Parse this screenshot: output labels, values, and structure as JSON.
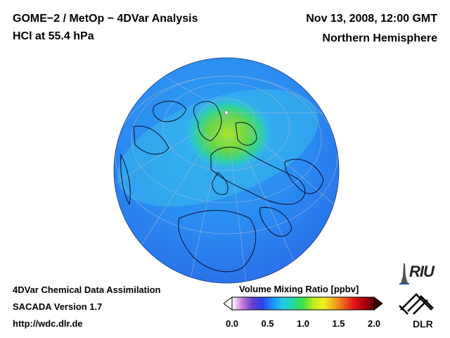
{
  "header": {
    "title": "GOME−2 / MetOp − 4DVar Analysis",
    "subtitle": "HCl at 55.4 hPa",
    "datetime": "Nov 13, 2008, 12:00 GMT",
    "region": "Northern Hemisphere"
  },
  "footer": {
    "line1": "4DVar Chemical Data Assimilation",
    "line2": "SACADA Version 1.7",
    "line3": "http://wdc.dlr.de"
  },
  "colorbar": {
    "title": "Volume Mixing Ratio [ppbv]",
    "ticks": [
      "0.0",
      "0.5",
      "1.0",
      "1.5",
      "2.0"
    ],
    "range": [
      0.0,
      2.0
    ],
    "colors": [
      "#ffffff",
      "#c87dd8",
      "#6a3fd0",
      "#2a40f0",
      "#1e90ff",
      "#22c8f0",
      "#20d8a0",
      "#40e040",
      "#b8ee20",
      "#f0f020",
      "#f0b020",
      "#f06018",
      "#e01818",
      "#b00010",
      "#600000"
    ]
  },
  "map": {
    "projection": "orthographic, Northern Hemisphere",
    "background_color": "#2b85f0",
    "high_region_color": "#7fe035"
  },
  "logos": {
    "riu": "RIU",
    "dlr": "DLR"
  }
}
